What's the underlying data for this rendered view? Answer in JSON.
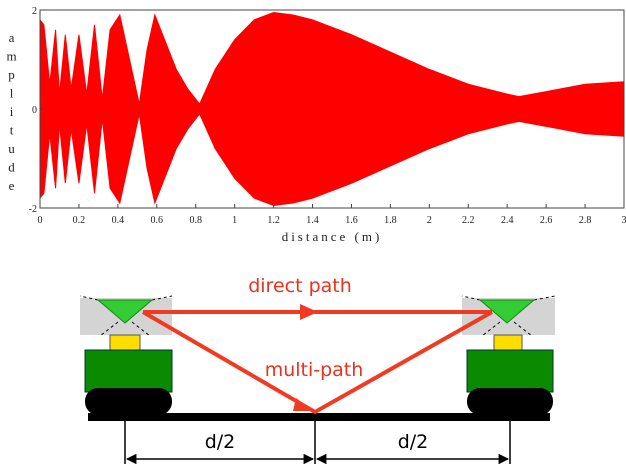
{
  "chart_data": {
    "type": "area",
    "xlabel": "distance (m)",
    "ylabel": "amplitude",
    "x": [
      0,
      0.02,
      0.05,
      0.08,
      0.1,
      0.13,
      0.16,
      0.2,
      0.24,
      0.28,
      0.32,
      0.36,
      0.41,
      0.46,
      0.51,
      0.55,
      0.59,
      0.64,
      0.7,
      0.76,
      0.82,
      0.9,
      1.0,
      1.1,
      1.2,
      1.3,
      1.4,
      1.6,
      1.8,
      2.0,
      2.2,
      2.4,
      2.46,
      2.6,
      2.8,
      3.0
    ],
    "series": [
      {
        "name": "amplitude",
        "color": "#ff0000",
        "values": [
          1.8,
          1.7,
          0.5,
          1.6,
          0.3,
          1.5,
          0.4,
          1.5,
          0.3,
          1.7,
          0.2,
          1.6,
          1.9,
          1.0,
          0.1,
          1.2,
          1.9,
          1.4,
          0.8,
          0.4,
          0.1,
          0.8,
          1.4,
          1.8,
          1.95,
          1.9,
          1.8,
          1.5,
          1.15,
          0.8,
          0.5,
          0.3,
          0.25,
          0.35,
          0.5,
          0.55
        ]
      }
    ],
    "xlim": [
      0,
      3
    ],
    "xticks": [
      0,
      0.2,
      0.4,
      0.6,
      0.8,
      1,
      1.2,
      1.4,
      1.6,
      1.8,
      2,
      2.2,
      2.4,
      2.6,
      2.8,
      3
    ],
    "ylim": [
      -2,
      2
    ],
    "yticks": [
      -2,
      0,
      2
    ]
  },
  "diagram": {
    "direct": "direct path",
    "multi": "multi-path",
    "left_half": "d/2",
    "right_half": "d/2"
  }
}
